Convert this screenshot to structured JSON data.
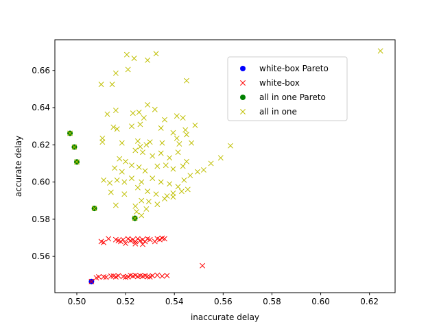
{
  "chart_data": {
    "type": "scatter",
    "title": "",
    "xlabel": "inaccurate delay",
    "ylabel": "accurate delay",
    "xlim": [
      0.491,
      0.6305
    ],
    "ylim": [
      0.5405,
      0.6765
    ],
    "xticks": [
      0.5,
      0.52,
      0.54,
      0.56,
      0.58,
      0.6,
      0.62
    ],
    "yticks": [
      0.56,
      0.58,
      0.6,
      0.62,
      0.64,
      0.66
    ],
    "xtick_labels": [
      "0.50",
      "0.52",
      "0.54",
      "0.56",
      "0.58",
      "0.60",
      "0.62"
    ],
    "ytick_labels": [
      "0.56",
      "0.58",
      "0.60",
      "0.62",
      "0.64",
      "0.66"
    ],
    "grid": false,
    "legend_position": "upper-right",
    "series": [
      {
        "name": "white-box Pareto",
        "marker": "circle",
        "color": "#0000ff",
        "points": [
          [
            0.506,
            0.5465
          ]
        ]
      },
      {
        "name": "white-box",
        "marker": "x",
        "color": "#ff0000",
        "points": [
          [
            0.506,
            0.5465
          ],
          [
            0.509,
            0.549
          ],
          [
            0.508,
            0.5485
          ],
          [
            0.512,
            0.5488
          ],
          [
            0.514,
            0.5494
          ],
          [
            0.516,
            0.549
          ],
          [
            0.517,
            0.5496
          ],
          [
            0.519,
            0.5492
          ],
          [
            0.521,
            0.549
          ],
          [
            0.523,
            0.5494
          ],
          [
            0.524,
            0.5498
          ],
          [
            0.525,
            0.5492
          ],
          [
            0.526,
            0.5496
          ],
          [
            0.527,
            0.5493
          ],
          [
            0.528,
            0.5497
          ],
          [
            0.529,
            0.5491
          ],
          [
            0.531,
            0.5496
          ],
          [
            0.533,
            0.5499
          ],
          [
            0.535,
            0.5494
          ],
          [
            0.537,
            0.5497
          ],
          [
            0.511,
            0.549
          ],
          [
            0.515,
            0.5494
          ],
          [
            0.52,
            0.5488
          ],
          [
            0.522,
            0.5498
          ],
          [
            0.53,
            0.549
          ],
          [
            0.51,
            0.568
          ],
          [
            0.511,
            0.5675
          ],
          [
            0.513,
            0.5695
          ],
          [
            0.516,
            0.569
          ],
          [
            0.517,
            0.5685
          ],
          [
            0.518,
            0.568
          ],
          [
            0.519,
            0.569
          ],
          [
            0.52,
            0.567
          ],
          [
            0.521,
            0.5695
          ],
          [
            0.522,
            0.5685
          ],
          [
            0.523,
            0.569
          ],
          [
            0.524,
            0.568
          ],
          [
            0.525,
            0.5695
          ],
          [
            0.526,
            0.5685
          ],
          [
            0.527,
            0.569
          ],
          [
            0.528,
            0.568
          ],
          [
            0.529,
            0.5695
          ],
          [
            0.53,
            0.569
          ],
          [
            0.532,
            0.568
          ],
          [
            0.533,
            0.5695
          ],
          [
            0.534,
            0.569
          ],
          [
            0.535,
            0.5698
          ],
          [
            0.536,
            0.5695
          ],
          [
            0.524,
            0.5668
          ],
          [
            0.527,
            0.5665
          ],
          [
            0.5515,
            0.555
          ]
        ]
      },
      {
        "name": "all in one Pareto",
        "marker": "circle",
        "color": "#008000",
        "points": [
          [
            0.4972,
            0.6262
          ],
          [
            0.499,
            0.6188
          ],
          [
            0.5,
            0.6108
          ],
          [
            0.5072,
            0.5858
          ],
          [
            0.5238,
            0.5805
          ]
        ]
      },
      {
        "name": "all in one",
        "marker": "x",
        "color": "#bfbf00",
        "points": [
          [
            0.4972,
            0.6262
          ],
          [
            0.499,
            0.6188
          ],
          [
            0.5,
            0.6108
          ],
          [
            0.5072,
            0.5858
          ],
          [
            0.5238,
            0.5805
          ],
          [
            0.6245,
            0.6705
          ],
          [
            0.5205,
            0.6685
          ],
          [
            0.5325,
            0.669
          ],
          [
            0.5235,
            0.6665
          ],
          [
            0.529,
            0.6655
          ],
          [
            0.521,
            0.6605
          ],
          [
            0.516,
            0.6585
          ],
          [
            0.5145,
            0.6525
          ],
          [
            0.51,
            0.6525
          ],
          [
            0.545,
            0.6545
          ],
          [
            0.5125,
            0.6365
          ],
          [
            0.516,
            0.6385
          ],
          [
            0.523,
            0.637
          ],
          [
            0.5255,
            0.6375
          ],
          [
            0.529,
            0.6415
          ],
          [
            0.532,
            0.639
          ],
          [
            0.5275,
            0.6345
          ],
          [
            0.536,
            0.6335
          ],
          [
            0.541,
            0.6355
          ],
          [
            0.5435,
            0.6345
          ],
          [
            0.5485,
            0.6305
          ],
          [
            0.5445,
            0.628
          ],
          [
            0.515,
            0.6295
          ],
          [
            0.5165,
            0.6285
          ],
          [
            0.5225,
            0.63
          ],
          [
            0.526,
            0.631
          ],
          [
            0.5345,
            0.629
          ],
          [
            0.5395,
            0.6265
          ],
          [
            0.545,
            0.6255
          ],
          [
            0.5105,
            0.6235
          ],
          [
            0.5105,
            0.6215
          ],
          [
            0.5185,
            0.621
          ],
          [
            0.525,
            0.622
          ],
          [
            0.526,
            0.619
          ],
          [
            0.5285,
            0.62
          ],
          [
            0.53,
            0.6215
          ],
          [
            0.535,
            0.621
          ],
          [
            0.541,
            0.6235
          ],
          [
            0.542,
            0.6205
          ],
          [
            0.547,
            0.621
          ],
          [
            0.563,
            0.6195
          ],
          [
            0.5175,
            0.6125
          ],
          [
            0.52,
            0.611
          ],
          [
            0.524,
            0.617
          ],
          [
            0.527,
            0.616
          ],
          [
            0.531,
            0.614
          ],
          [
            0.5345,
            0.6155
          ],
          [
            0.538,
            0.613
          ],
          [
            0.5415,
            0.616
          ],
          [
            0.545,
            0.611
          ],
          [
            0.5155,
            0.6075
          ],
          [
            0.5185,
            0.6055
          ],
          [
            0.5225,
            0.609
          ],
          [
            0.5255,
            0.608
          ],
          [
            0.528,
            0.606
          ],
          [
            0.533,
            0.6085
          ],
          [
            0.5365,
            0.609
          ],
          [
            0.5395,
            0.607
          ],
          [
            0.5435,
            0.6085
          ],
          [
            0.555,
            0.61
          ],
          [
            0.559,
            0.613
          ],
          [
            0.552,
            0.6065
          ],
          [
            0.511,
            0.601
          ],
          [
            0.5135,
            0.5995
          ],
          [
            0.5165,
            0.601
          ],
          [
            0.5195,
            0.6
          ],
          [
            0.5225,
            0.602
          ],
          [
            0.5265,
            0.6
          ],
          [
            0.531,
            0.602
          ],
          [
            0.5345,
            0.6
          ],
          [
            0.538,
            0.599
          ],
          [
            0.5415,
            0.5975
          ],
          [
            0.544,
            0.601
          ],
          [
            0.5465,
            0.6035
          ],
          [
            0.5495,
            0.6055
          ],
          [
            0.514,
            0.5945
          ],
          [
            0.5195,
            0.5935
          ],
          [
            0.525,
            0.597
          ],
          [
            0.529,
            0.595
          ],
          [
            0.5325,
            0.5935
          ],
          [
            0.537,
            0.5925
          ],
          [
            0.5395,
            0.594
          ],
          [
            0.543,
            0.595
          ],
          [
            0.5455,
            0.596
          ],
          [
            0.516,
            0.5875
          ],
          [
            0.524,
            0.587
          ],
          [
            0.5265,
            0.59
          ],
          [
            0.5295,
            0.5895
          ],
          [
            0.533,
            0.588
          ],
          [
            0.536,
            0.591
          ],
          [
            0.5395,
            0.592
          ],
          [
            0.5245,
            0.584
          ],
          [
            0.5265,
            0.582
          ],
          [
            0.5285,
            0.5855
          ]
        ]
      }
    ]
  },
  "legend": {
    "items": [
      {
        "label": "white-box Pareto",
        "marker": "circle",
        "color": "#0000ff"
      },
      {
        "label": "white-box",
        "marker": "x",
        "color": "#ff0000"
      },
      {
        "label": "all in one Pareto",
        "marker": "circle",
        "color": "#008000"
      },
      {
        "label": "all in one",
        "marker": "x",
        "color": "#bfbf00"
      }
    ]
  }
}
